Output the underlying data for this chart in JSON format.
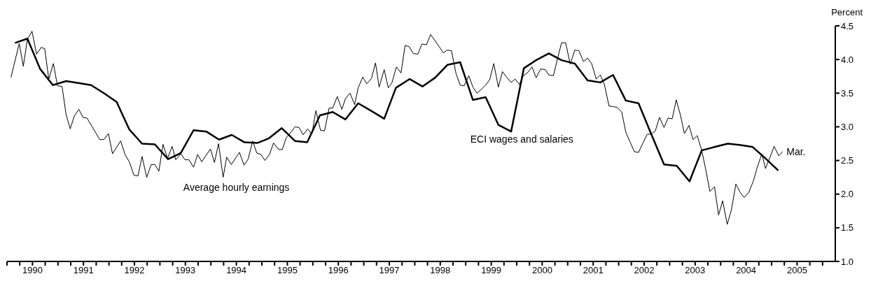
{
  "chart_data": {
    "type": "line",
    "ylabel": "Percent",
    "xlim": [
      1990,
      2006.25
    ],
    "ylim": [
      1,
      4.5
    ],
    "yticks": [
      {
        "value": 1,
        "label": "1.0"
      },
      {
        "value": 1.5,
        "label": "1.5"
      },
      {
        "value": 2,
        "label": "2.0"
      },
      {
        "value": 2.5,
        "label": "2.5"
      },
      {
        "value": 3,
        "label": "3.0"
      },
      {
        "value": 3.5,
        "label": "3.5"
      },
      {
        "value": 4,
        "label": "4.0"
      },
      {
        "value": 4.5,
        "label": "4.5"
      }
    ],
    "xticks": [
      {
        "value": 1990,
        "label": null
      },
      {
        "value": 1990.25,
        "label": null
      },
      {
        "value": 1990.5,
        "label": "1990"
      },
      {
        "value": 1990.75,
        "label": null
      },
      {
        "value": 1991,
        "label": null
      },
      {
        "value": 1991.25,
        "label": null
      },
      {
        "value": 1991.5,
        "label": "1991"
      },
      {
        "value": 1991.75,
        "label": null
      },
      {
        "value": 1992,
        "label": null
      },
      {
        "value": 1992.25,
        "label": null
      },
      {
        "value": 1992.5,
        "label": "1992"
      },
      {
        "value": 1992.75,
        "label": null
      },
      {
        "value": 1993,
        "label": null
      },
      {
        "value": 1993.25,
        "label": null
      },
      {
        "value": 1993.5,
        "label": "1993"
      },
      {
        "value": 1993.75,
        "label": null
      },
      {
        "value": 1994,
        "label": null
      },
      {
        "value": 1994.25,
        "label": null
      },
      {
        "value": 1994.5,
        "label": "1994"
      },
      {
        "value": 1994.75,
        "label": null
      },
      {
        "value": 1995,
        "label": null
      },
      {
        "value": 1995.25,
        "label": null
      },
      {
        "value": 1995.5,
        "label": "1995"
      },
      {
        "value": 1995.75,
        "label": null
      },
      {
        "value": 1996,
        "label": null
      },
      {
        "value": 1996.25,
        "label": null
      },
      {
        "value": 1996.5,
        "label": "1996"
      },
      {
        "value": 1996.75,
        "label": null
      },
      {
        "value": 1997,
        "label": null
      },
      {
        "value": 1997.25,
        "label": null
      },
      {
        "value": 1997.5,
        "label": "1997"
      },
      {
        "value": 1997.75,
        "label": null
      },
      {
        "value": 1998,
        "label": null
      },
      {
        "value": 1998.25,
        "label": null
      },
      {
        "value": 1998.5,
        "label": "1998"
      },
      {
        "value": 1998.75,
        "label": null
      },
      {
        "value": 1999,
        "label": null
      },
      {
        "value": 1999.25,
        "label": null
      },
      {
        "value": 1999.5,
        "label": "1999"
      },
      {
        "value": 1999.75,
        "label": null
      },
      {
        "value": 2000,
        "label": null
      },
      {
        "value": 2000.25,
        "label": null
      },
      {
        "value": 2000.5,
        "label": "2000"
      },
      {
        "value": 2000.75,
        "label": null
      },
      {
        "value": 2001,
        "label": null
      },
      {
        "value": 2001.25,
        "label": null
      },
      {
        "value": 2001.5,
        "label": "2001"
      },
      {
        "value": 2001.75,
        "label": null
      },
      {
        "value": 2002,
        "label": null
      },
      {
        "value": 2002.25,
        "label": null
      },
      {
        "value": 2002.5,
        "label": "2002"
      },
      {
        "value": 2002.75,
        "label": null
      },
      {
        "value": 2003,
        "label": null
      },
      {
        "value": 2003.25,
        "label": null
      },
      {
        "value": 2003.5,
        "label": "2003"
      },
      {
        "value": 2003.75,
        "label": null
      },
      {
        "value": 2004,
        "label": null
      },
      {
        "value": 2004.25,
        "label": null
      },
      {
        "value": 2004.5,
        "label": "2004"
      },
      {
        "value": 2004.75,
        "label": null
      },
      {
        "value": 2005,
        "label": null
      },
      {
        "value": 2005.25,
        "label": null
      },
      {
        "value": 2005.5,
        "label": "2005"
      },
      {
        "value": 2005.75,
        "label": null
      },
      {
        "value": 2006,
        "label": null
      }
    ],
    "marker": "none",
    "line_style": "solid",
    "annotations": [
      {
        "text": "Mar.",
        "x": 2005.21,
        "y": 2.63
      }
    ],
    "series": [
      {
        "name": "Average hourly earnings",
        "color": "#000000",
        "x": [
          1990.08,
          1990.24,
          1990.32,
          1990.4,
          1990.49,
          1990.58,
          1990.67,
          1990.74,
          1990.82,
          1990.91,
          1990.99,
          1991.08,
          1991.16,
          1991.24,
          1991.32,
          1991.41,
          1991.49,
          1991.57,
          1991.82,
          1991.9,
          1991.99,
          1992.07,
          1992.23,
          1992.32,
          1992.4,
          1992.49,
          1992.57,
          1992.65,
          1992.74,
          1992.83,
          1992.9,
          1992.98,
          1993.06,
          1993.15,
          1993.24,
          1993.31,
          1993.41,
          1993.49,
          1993.57,
          1993.66,
          1993.74,
          1993.82,
          1993.91,
          1993.99,
          1994.07,
          1994.15,
          1994.24,
          1994.31,
          1994.4,
          1994.48,
          1994.56,
          1994.65,
          1994.73,
          1994.82,
          1994.9,
          1994.98,
          1995.06,
          1995.15,
          1995.23,
          1995.32,
          1995.4,
          1995.48,
          1995.57,
          1995.65,
          1995.73,
          1995.81,
          1995.9,
          1995.98,
          1996.06,
          1996.15,
          1996.23,
          1996.32,
          1996.39,
          1996.48,
          1996.57,
          1996.64,
          1996.73,
          1996.82,
          1996.89,
          1996.98,
          1997.06,
          1997.15,
          1997.23,
          1997.3,
          1997.4,
          1997.48,
          1997.55,
          1997.64,
          1997.73,
          1997.81,
          1997.89,
          1997.97,
          1998.06,
          1998.14,
          1998.23,
          1998.31,
          1998.39,
          1998.47,
          1998.56,
          1998.64,
          1998.72,
          1998.81,
          1998.89,
          1998.97,
          1999.06,
          1999.14,
          1999.22,
          1999.31,
          1999.39,
          1999.47,
          1999.55,
          1999.64,
          1999.72,
          1999.8,
          1999.89,
          1999.97,
          2000.05,
          2000.13,
          2000.22,
          2000.3,
          2000.38,
          2000.47,
          2000.56,
          2000.63,
          2000.72,
          2000.8,
          2000.88,
          2000.96,
          2001.05,
          2001.14,
          2001.22,
          2001.31,
          2001.39,
          2001.47,
          2001.56,
          2001.64,
          2001.72,
          2001.81,
          2001.89,
          2001.97,
          2002.06,
          2002.14,
          2002.22,
          2002.31,
          2002.39,
          2002.47,
          2002.56,
          2002.64,
          2002.72,
          2002.8,
          2002.89,
          2002.97,
          2003.05,
          2003.13,
          2003.21,
          2003.29,
          2003.38,
          2003.46,
          2003.54,
          2003.63,
          2003.71,
          2003.79,
          2003.88,
          2003.96,
          2004.04,
          2004.13,
          2004.21,
          2004.3,
          2004.38,
          2004.46,
          2004.55,
          2004.64,
          2004.72,
          2004.81,
          2004.88,
          2004.97,
          2005.05,
          2005.14,
          2005.21
        ],
        "values": [
          3.74,
          4.24,
          3.9,
          4.3,
          4.42,
          4.08,
          4.18,
          4.16,
          3.71,
          3.94,
          3.61,
          3.6,
          3.18,
          2.97,
          3.16,
          3.26,
          3.14,
          3.13,
          2.81,
          2.81,
          2.9,
          2.6,
          2.79,
          2.58,
          2.48,
          2.28,
          2.27,
          2.56,
          2.25,
          2.44,
          2.44,
          2.34,
          2.74,
          2.53,
          2.71,
          2.51,
          2.6,
          2.51,
          2.51,
          2.4,
          2.59,
          2.48,
          2.58,
          2.67,
          2.47,
          2.75,
          2.25,
          2.55,
          2.44,
          2.53,
          2.62,
          2.43,
          2.52,
          2.79,
          2.61,
          2.59,
          2.5,
          2.59,
          2.76,
          2.67,
          2.66,
          2.84,
          2.92,
          3.0,
          2.99,
          2.88,
          2.97,
          2.89,
          3.24,
          2.95,
          2.94,
          3.28,
          3.28,
          3.45,
          3.26,
          3.42,
          3.5,
          3.33,
          3.58,
          3.74,
          3.64,
          3.72,
          3.95,
          3.59,
          3.85,
          3.58,
          3.65,
          3.89,
          3.8,
          4.21,
          4.19,
          4.09,
          4.08,
          4.23,
          4.22,
          4.37,
          4.29,
          4.2,
          4.1,
          4.14,
          4.13,
          3.79,
          3.62,
          3.61,
          3.76,
          3.59,
          3.5,
          3.56,
          3.62,
          3.7,
          3.94,
          3.59,
          3.82,
          3.74,
          3.66,
          3.71,
          3.63,
          3.76,
          3.81,
          3.89,
          3.73,
          3.86,
          3.85,
          3.77,
          3.76,
          4.01,
          4.25,
          4.25,
          3.93,
          4.14,
          4.13,
          3.97,
          4.02,
          3.94,
          3.71,
          3.77,
          3.63,
          3.31,
          3.3,
          3.29,
          3.22,
          2.92,
          2.78,
          2.63,
          2.62,
          2.75,
          2.89,
          2.89,
          2.94,
          3.14,
          2.99,
          3.13,
          3.12,
          3.4,
          3.18,
          2.9,
          3.02,
          2.81,
          2.87,
          2.65,
          2.36,
          2.04,
          2.11,
          1.69,
          1.9,
          1.55,
          1.76,
          2.15,
          2.03,
          1.95,
          2.02,
          2.19,
          2.4,
          2.6,
          2.38,
          2.55,
          2.71,
          2.57,
          2.63
        ]
      },
      {
        "name": "ECI wages and salaries",
        "color": "#000000",
        "x": [
          1990.17,
          1990.4,
          1990.65,
          1990.9,
          1991.16,
          1991.4,
          1991.65,
          1991.9,
          1992.15,
          1992.4,
          1992.65,
          1992.9,
          1993.16,
          1993.41,
          1993.66,
          1993.91,
          1994.16,
          1994.41,
          1994.66,
          1994.91,
          1995.14,
          1995.39,
          1995.65,
          1995.89,
          1996.14,
          1996.39,
          1996.64,
          1996.89,
          1997.14,
          1997.4,
          1997.63,
          1997.9,
          1998.15,
          1998.4,
          1998.64,
          1998.89,
          1999.14,
          1999.39,
          1999.64,
          1999.89,
          2000.14,
          2000.38,
          2000.63,
          2000.88,
          2001.14,
          2001.39,
          2001.64,
          2001.89,
          2002.14,
          2002.39,
          2002.64,
          2002.89,
          2003.14,
          2003.39,
          2003.63,
          2003.88,
          2004.14,
          2004.39,
          2004.63,
          2004.88,
          2005.12
        ],
        "values": [
          4.25,
          4.31,
          3.86,
          3.62,
          3.68,
          3.65,
          3.62,
          3.5,
          3.37,
          2.96,
          2.75,
          2.74,
          2.52,
          2.61,
          2.95,
          2.93,
          2.81,
          2.88,
          2.77,
          2.76,
          2.83,
          2.98,
          2.79,
          2.77,
          3.17,
          3.22,
          3.11,
          3.35,
          3.24,
          3.12,
          3.58,
          3.71,
          3.6,
          3.73,
          3.92,
          3.96,
          3.4,
          3.44,
          3.03,
          2.93,
          3.87,
          3.99,
          4.09,
          3.99,
          3.94,
          3.69,
          3.66,
          3.77,
          3.39,
          3.35,
          2.89,
          2.44,
          2.42,
          2.19,
          2.65,
          2.7,
          2.75,
          2.73,
          2.7,
          2.53,
          2.36
        ]
      }
    ]
  }
}
